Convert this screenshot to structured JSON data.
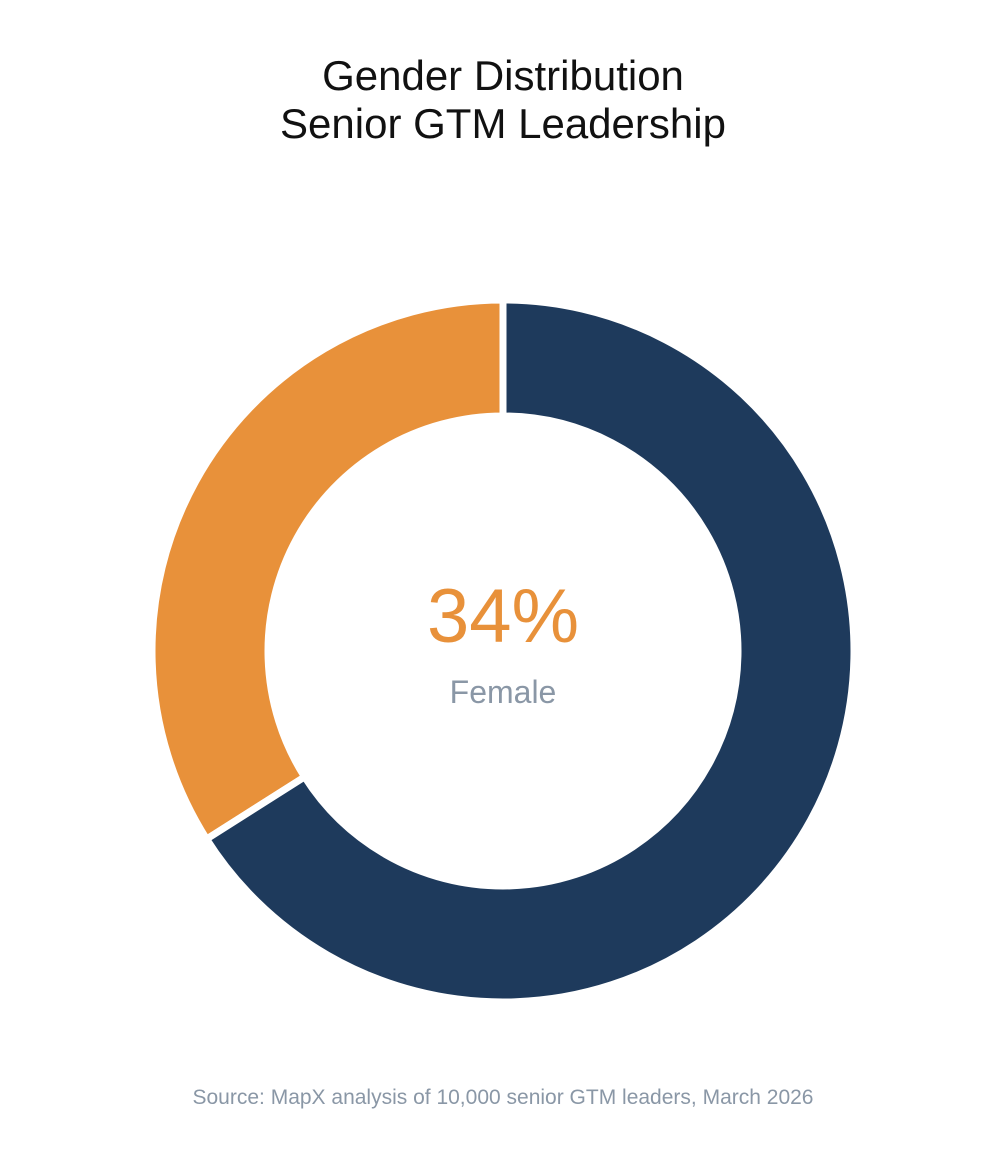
{
  "colors": {
    "female": "#E8913A",
    "male": "#1E3A5C",
    "label_gray": "#8A97A6",
    "title": "#111111"
  },
  "chart_data": {
    "type": "pie",
    "variant": "donut",
    "title_lines": [
      "Gender Distribution",
      "Senior GTM Leadership"
    ],
    "slices": [
      {
        "name": "Female",
        "value": 34,
        "color": "#E8913A"
      },
      {
        "name": "",
        "value": 66,
        "color": "#1E3A5C"
      }
    ],
    "center_value": "34%",
    "center_label": "Female",
    "source": "Source: MapX analysis of 10,000 senior GTM leaders, March 2026"
  }
}
